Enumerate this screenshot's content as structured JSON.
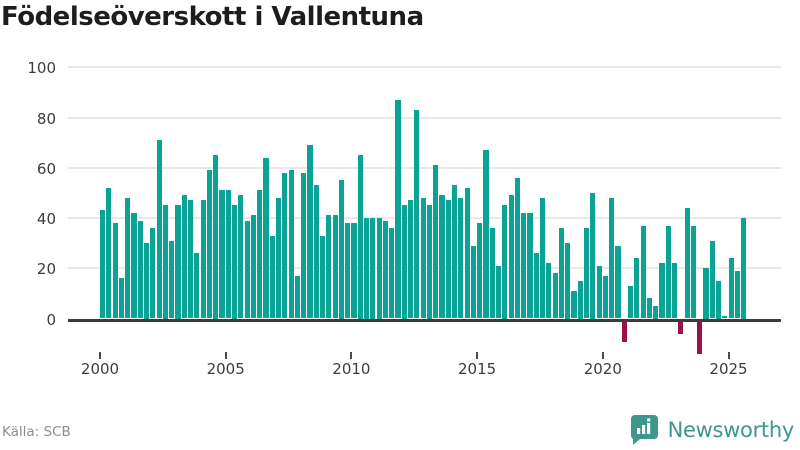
{
  "chart_data": {
    "type": "bar",
    "title": "Födelseöverskott i Vallentuna",
    "source": "Källa: SCB",
    "brand": "Newsworthy",
    "x_unit": "quarter",
    "x_range": "2000Q1-2025Q3",
    "x_tick_labels": [
      "2000",
      "2005",
      "2010",
      "2015",
      "2020",
      "2025"
    ],
    "x_tick_years": [
      2000,
      2005,
      2010,
      2015,
      2020,
      2025
    ],
    "y_ticks": [
      0,
      20,
      40,
      60,
      80,
      100
    ],
    "ylim": [
      -15,
      100
    ],
    "grid": "horizontal",
    "legend": "none",
    "colors": {
      "bar_positive": "#0aa396",
      "bar_negative": "#9a1048",
      "zero_axis": "#3d3d3d",
      "gridline": "#e8e8e8",
      "title": "#1d1d1d",
      "tick_label": "#3c3c3c",
      "source_text": "#8e8e96",
      "brand_teal": "#3e968f"
    },
    "values": [
      43,
      52,
      38,
      16,
      48,
      42,
      39,
      30,
      36,
      71,
      45,
      31,
      45,
      49,
      47,
      26,
      47,
      59,
      65,
      51,
      51,
      45,
      49,
      39,
      41,
      51,
      64,
      33,
      48,
      58,
      59,
      17,
      58,
      69,
      53,
      33,
      41,
      41,
      55,
      38,
      38,
      65,
      40,
      40,
      40,
      39,
      36,
      87,
      45,
      47,
      83,
      48,
      45,
      61,
      49,
      47,
      53,
      48,
      52,
      29,
      38,
      67,
      36,
      21,
      45,
      49,
      56,
      42,
      42,
      26,
      48,
      22,
      18,
      36,
      30,
      11,
      15,
      36,
      50,
      21,
      17,
      48,
      29,
      -8,
      13,
      24,
      37,
      8,
      5,
      22,
      37,
      22,
      -5,
      44,
      37,
      -13,
      20,
      31,
      15,
      1,
      24,
      19,
      40
    ]
  }
}
